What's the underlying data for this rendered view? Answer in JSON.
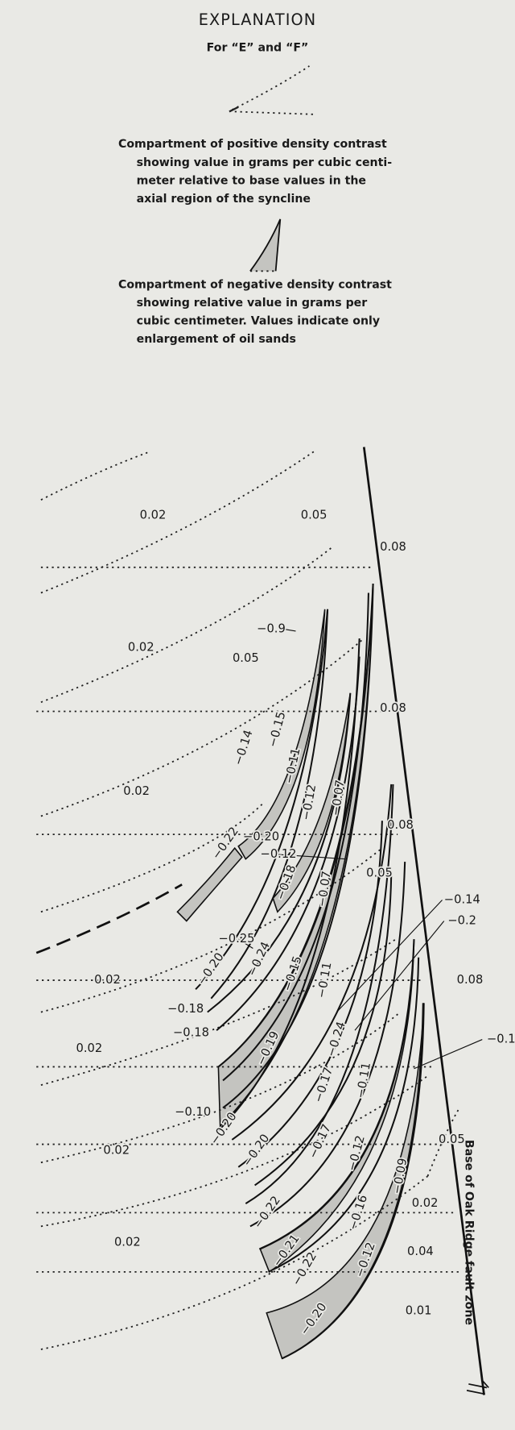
{
  "explanation": {
    "title": "EXPLANATION",
    "subtitle": "For “E” and “F”",
    "positive": [
      "Compartment of positive density contrast",
      "showing value in grams per cubic centi-",
      "meter relative to base values in the",
      "axial region of the syncline"
    ],
    "negative": [
      "Compartment of negative density contrast",
      "showing relative value in grams per",
      "cubic centimeter.  Values indicate only",
      "enlargement of oil sands"
    ]
  },
  "section": {
    "fault_label": "Base of Oak Ridge fault zone",
    "labels": [
      "0.02",
      "0.05",
      "0.08",
      "0.02",
      "−0.9",
      "0.05",
      "0.08",
      "−0.15",
      "−0.14",
      "−0.11",
      "0.02",
      "−0.12",
      "−0.07",
      "0.08",
      "−0.20",
      "−0.12",
      "−0.22",
      "−0.18",
      "0.05",
      "−0.07",
      "−0.25",
      "−0.14",
      "−0.2",
      "−0.24",
      "−0.15",
      "−0.11",
      "0.02",
      "0.08",
      "−0.20",
      "−0.18",
      "−0.24",
      "−0.18",
      "−0.19",
      "0.02",
      "−0.18",
      "−0.11",
      "−0.17",
      "−0.10",
      "−0.20",
      "−0.20",
      "−0.17",
      "−0.12",
      "0.05",
      "−0.09",
      "0.02",
      "−0.22",
      "−0.16",
      "0.02",
      "−0.21",
      "−0.12",
      "−0.22",
      "0.04",
      "0.02",
      "−0.20",
      "0.01"
    ]
  }
}
